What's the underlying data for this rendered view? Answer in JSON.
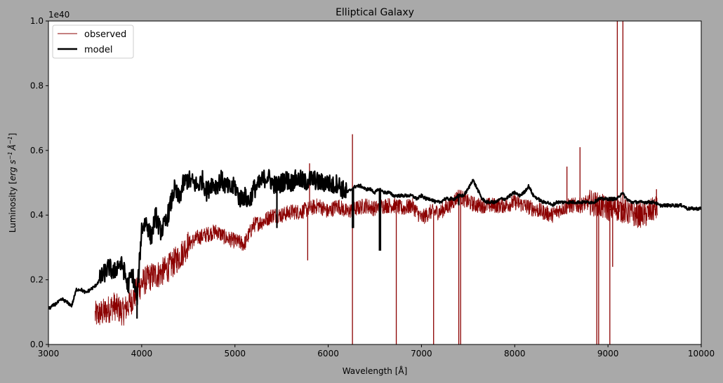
{
  "chart_data": {
    "type": "line",
    "title": "Elliptical Galaxy",
    "xlabel": "Wavelength [Å]",
    "ylabel_parts": [
      "Luminosity [",
      "erg s",
      "−1",
      "Å",
      "−1",
      "]"
    ],
    "y_offset_label": "1e40",
    "xlim": [
      3000,
      10000
    ],
    "ylim": [
      0.0,
      1.0
    ],
    "x_ticks": [
      3000,
      4000,
      5000,
      6000,
      7000,
      8000,
      9000,
      10000
    ],
    "y_ticks": [
      0.0,
      0.2,
      0.4,
      0.6,
      0.8,
      1.0
    ],
    "x_tick_labels": [
      "3000",
      "4000",
      "5000",
      "6000",
      "7000",
      "8000",
      "9000",
      "10000"
    ],
    "y_tick_labels": [
      "0.0",
      "0.2",
      "0.4",
      "0.6",
      "0.8",
      "1.0"
    ],
    "grid": false,
    "legend_position": "top-left",
    "series": [
      {
        "name": "observed",
        "color": "#8b0000",
        "line_style": "thin, highly noisy",
        "x_range": [
          3500,
          9530
        ],
        "trend": [
          [
            3500,
            0.09
          ],
          [
            3600,
            0.1
          ],
          [
            3700,
            0.12
          ],
          [
            3800,
            0.1
          ],
          [
            3900,
            0.14
          ],
          [
            4000,
            0.19
          ],
          [
            4100,
            0.21
          ],
          [
            4200,
            0.22
          ],
          [
            4300,
            0.24
          ],
          [
            4400,
            0.27
          ],
          [
            4500,
            0.31
          ],
          [
            4600,
            0.33
          ],
          [
            4700,
            0.34
          ],
          [
            4800,
            0.35
          ],
          [
            4900,
            0.33
          ],
          [
            5000,
            0.32
          ],
          [
            5100,
            0.31
          ],
          [
            5200,
            0.37
          ],
          [
            5300,
            0.38
          ],
          [
            5400,
            0.4
          ],
          [
            5500,
            0.4
          ],
          [
            5600,
            0.41
          ],
          [
            5700,
            0.41
          ],
          [
            5800,
            0.42
          ],
          [
            5900,
            0.43
          ],
          [
            6000,
            0.41
          ],
          [
            6100,
            0.43
          ],
          [
            6200,
            0.41
          ],
          [
            6300,
            0.42
          ],
          [
            6400,
            0.43
          ],
          [
            6500,
            0.42
          ],
          [
            6600,
            0.43
          ],
          [
            6700,
            0.43
          ],
          [
            6800,
            0.42
          ],
          [
            6900,
            0.43
          ],
          [
            7000,
            0.39
          ],
          [
            7100,
            0.41
          ],
          [
            7200,
            0.41
          ],
          [
            7300,
            0.43
          ],
          [
            7400,
            0.46
          ],
          [
            7500,
            0.44
          ],
          [
            7600,
            0.43
          ],
          [
            7700,
            0.43
          ],
          [
            7800,
            0.43
          ],
          [
            7900,
            0.43
          ],
          [
            8000,
            0.44
          ],
          [
            8100,
            0.43
          ],
          [
            8200,
            0.42
          ],
          [
            8300,
            0.41
          ],
          [
            8400,
            0.4
          ],
          [
            8500,
            0.42
          ],
          [
            8600,
            0.43
          ],
          [
            8700,
            0.43
          ],
          [
            8800,
            0.44
          ],
          [
            8900,
            0.43
          ],
          [
            9000,
            0.42
          ],
          [
            9100,
            0.42
          ],
          [
            9200,
            0.41
          ],
          [
            9300,
            0.4
          ],
          [
            9400,
            0.4
          ],
          [
            9500,
            0.42
          ],
          [
            9530,
            0.42
          ]
        ],
        "spikes": [
          [
            6260,
            0.65
          ],
          [
            6260,
            0.0
          ],
          [
            6730,
            0.0
          ],
          [
            7130,
            0.0
          ],
          [
            7400,
            0.0
          ],
          [
            7420,
            0.0
          ],
          [
            8880,
            0.0
          ],
          [
            8900,
            0.0
          ],
          [
            9020,
            0.0
          ],
          [
            9100,
            1.0
          ],
          [
            9160,
            1.0
          ],
          [
            8700,
            0.61
          ],
          [
            8560,
            0.55
          ],
          [
            9050,
            0.24
          ],
          [
            5780,
            0.26
          ],
          [
            5800,
            0.56
          ],
          [
            9520,
            0.48
          ]
        ]
      },
      {
        "name": "model",
        "color": "#000000",
        "line_style": "thick",
        "x_range": [
          3000,
          10000
        ],
        "points": [
          [
            3000,
            0.11
          ],
          [
            3050,
            0.12
          ],
          [
            3100,
            0.13
          ],
          [
            3150,
            0.14
          ],
          [
            3200,
            0.13
          ],
          [
            3250,
            0.12
          ],
          [
            3300,
            0.17
          ],
          [
            3350,
            0.17
          ],
          [
            3400,
            0.16
          ],
          [
            3450,
            0.17
          ],
          [
            3500,
            0.18
          ],
          [
            3550,
            0.2
          ],
          [
            3600,
            0.22
          ],
          [
            3650,
            0.24
          ],
          [
            3700,
            0.22
          ],
          [
            3750,
            0.25
          ],
          [
            3800,
            0.24
          ],
          [
            3850,
            0.18
          ],
          [
            3900,
            0.22
          ],
          [
            3950,
            0.14
          ],
          [
            4000,
            0.36
          ],
          [
            4050,
            0.38
          ],
          [
            4100,
            0.33
          ],
          [
            4150,
            0.4
          ],
          [
            4200,
            0.35
          ],
          [
            4250,
            0.37
          ],
          [
            4300,
            0.42
          ],
          [
            4350,
            0.48
          ],
          [
            4400,
            0.45
          ],
          [
            4450,
            0.5
          ],
          [
            4500,
            0.51
          ],
          [
            4550,
            0.5
          ],
          [
            4600,
            0.49
          ],
          [
            4650,
            0.51
          ],
          [
            4700,
            0.47
          ],
          [
            4750,
            0.5
          ],
          [
            4800,
            0.49
          ],
          [
            4850,
            0.51
          ],
          [
            4900,
            0.49
          ],
          [
            4950,
            0.48
          ],
          [
            5000,
            0.49
          ],
          [
            5050,
            0.45
          ],
          [
            5100,
            0.46
          ],
          [
            5150,
            0.44
          ],
          [
            5200,
            0.48
          ],
          [
            5250,
            0.49
          ],
          [
            5300,
            0.51
          ],
          [
            5350,
            0.52
          ],
          [
            5400,
            0.5
          ],
          [
            5450,
            0.49
          ],
          [
            5500,
            0.5
          ],
          [
            5550,
            0.51
          ],
          [
            5600,
            0.5
          ],
          [
            5650,
            0.51
          ],
          [
            5700,
            0.51
          ],
          [
            5750,
            0.5
          ],
          [
            5800,
            0.51
          ],
          [
            5850,
            0.51
          ],
          [
            5900,
            0.5
          ],
          [
            5950,
            0.5
          ],
          [
            6000,
            0.5
          ],
          [
            6050,
            0.49
          ],
          [
            6100,
            0.5
          ],
          [
            6150,
            0.48
          ],
          [
            6200,
            0.47
          ],
          [
            6250,
            0.48
          ],
          [
            6300,
            0.49
          ],
          [
            6350,
            0.49
          ],
          [
            6400,
            0.48
          ],
          [
            6450,
            0.48
          ],
          [
            6500,
            0.47
          ],
          [
            6550,
            0.48
          ],
          [
            6600,
            0.47
          ],
          [
            6650,
            0.47
          ],
          [
            6700,
            0.46
          ],
          [
            6750,
            0.46
          ],
          [
            6800,
            0.46
          ],
          [
            6850,
            0.46
          ],
          [
            6900,
            0.46
          ],
          [
            6950,
            0.45
          ],
          [
            7000,
            0.46
          ],
          [
            7050,
            0.45
          ],
          [
            7100,
            0.45
          ],
          [
            7150,
            0.44
          ],
          [
            7200,
            0.44
          ],
          [
            7250,
            0.45
          ],
          [
            7300,
            0.45
          ],
          [
            7350,
            0.45
          ],
          [
            7400,
            0.46
          ],
          [
            7450,
            0.46
          ],
          [
            7500,
            0.48
          ],
          [
            7550,
            0.51
          ],
          [
            7600,
            0.48
          ],
          [
            7650,
            0.45
          ],
          [
            7700,
            0.44
          ],
          [
            7750,
            0.44
          ],
          [
            7800,
            0.44
          ],
          [
            7850,
            0.45
          ],
          [
            7900,
            0.45
          ],
          [
            7950,
            0.46
          ],
          [
            8000,
            0.47
          ],
          [
            8050,
            0.46
          ],
          [
            8100,
            0.47
          ],
          [
            8150,
            0.49
          ],
          [
            8200,
            0.46
          ],
          [
            8250,
            0.45
          ],
          [
            8300,
            0.44
          ],
          [
            8350,
            0.44
          ],
          [
            8400,
            0.43
          ],
          [
            8450,
            0.44
          ],
          [
            8500,
            0.44
          ],
          [
            8550,
            0.44
          ],
          [
            8600,
            0.44
          ],
          [
            8650,
            0.44
          ],
          [
            8700,
            0.44
          ],
          [
            8750,
            0.44
          ],
          [
            8800,
            0.44
          ],
          [
            8850,
            0.44
          ],
          [
            8900,
            0.45
          ],
          [
            8950,
            0.45
          ],
          [
            9000,
            0.45
          ],
          [
            9050,
            0.45
          ],
          [
            9100,
            0.45
          ],
          [
            9150,
            0.47
          ],
          [
            9200,
            0.45
          ],
          [
            9250,
            0.44
          ],
          [
            9300,
            0.44
          ],
          [
            9350,
            0.44
          ],
          [
            9400,
            0.44
          ],
          [
            9450,
            0.44
          ],
          [
            9500,
            0.44
          ],
          [
            9550,
            0.43
          ],
          [
            9600,
            0.43
          ],
          [
            9650,
            0.43
          ],
          [
            9700,
            0.43
          ],
          [
            9750,
            0.43
          ],
          [
            9800,
            0.43
          ],
          [
            9850,
            0.42
          ],
          [
            9900,
            0.42
          ],
          [
            9950,
            0.42
          ],
          [
            10000,
            0.42
          ]
        ],
        "spikes": [
          [
            5450,
            0.36
          ],
          [
            6260,
            0.36
          ],
          [
            6270,
            0.36
          ],
          [
            6550,
            0.29
          ],
          [
            6560,
            0.29
          ],
          [
            7400,
            0.43
          ],
          [
            3950,
            0.08
          ]
        ]
      }
    ]
  }
}
